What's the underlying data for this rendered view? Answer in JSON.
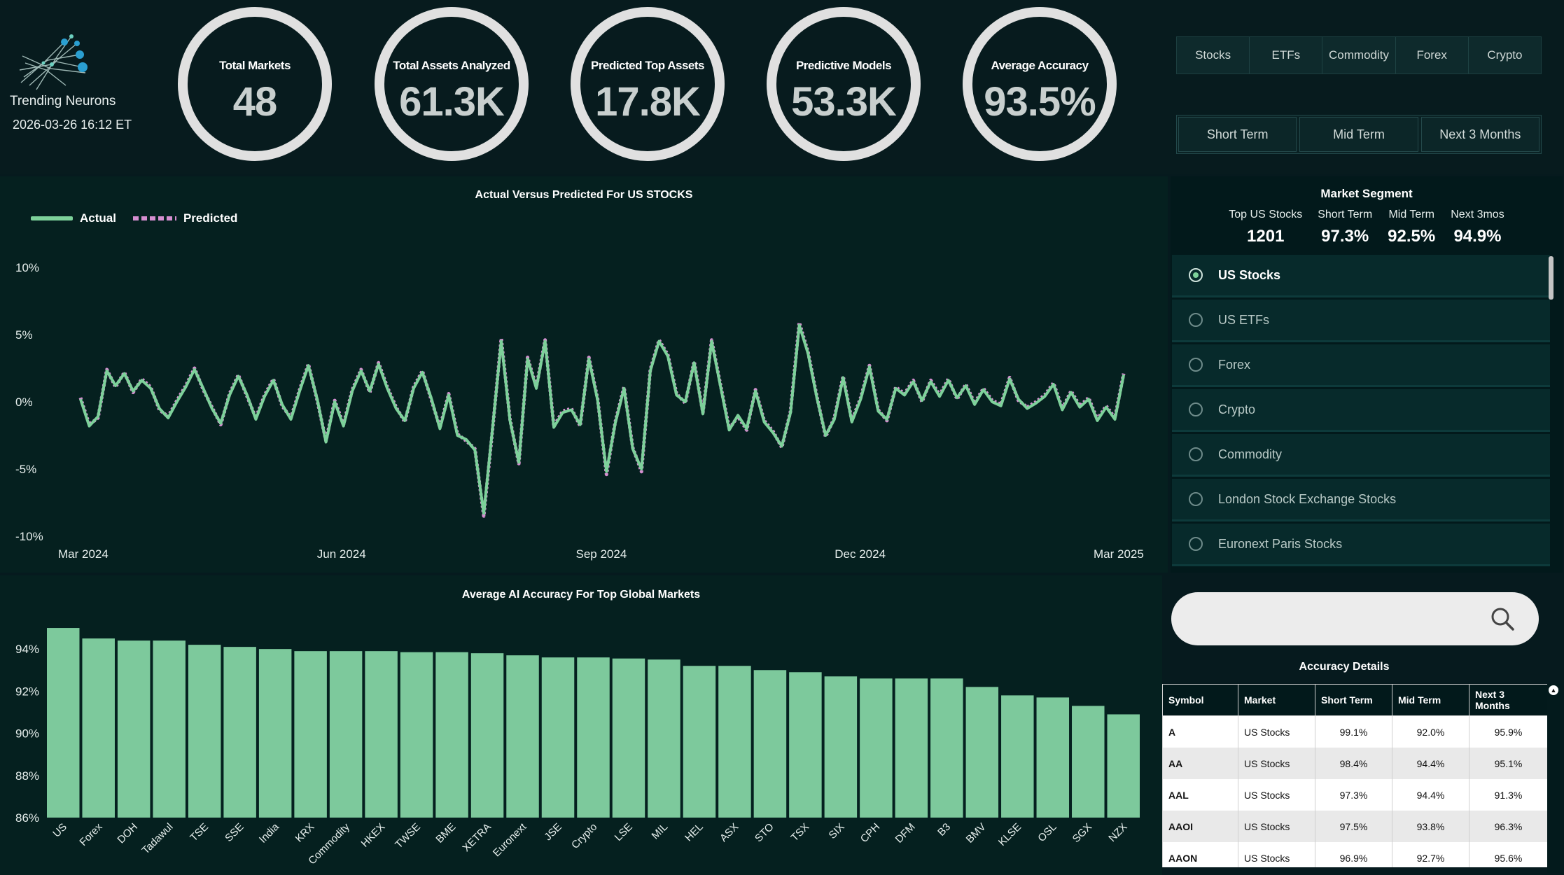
{
  "brand": {
    "name": "Trending Neurons",
    "datetime": "2026-03-26 16:12 ET"
  },
  "kpis": [
    {
      "label": "Total Markets",
      "value": "48"
    },
    {
      "label": "Total Assets Analyzed",
      "value": "61.3K"
    },
    {
      "label": "Predicted Top Assets",
      "value": "17.8K"
    },
    {
      "label": "Predictive Models",
      "value": "53.3K"
    },
    {
      "label": "Average Accuracy",
      "value": "93.5%"
    }
  ],
  "asset_tabs": [
    "Stocks",
    "ETFs",
    "Commodity",
    "Forex",
    "Crypto"
  ],
  "term_tabs": [
    "Short Term",
    "Mid Term",
    "Next 3 Months"
  ],
  "line_chart": {
    "title": "Actual Versus Predicted For US STOCKS",
    "legend": {
      "actual": "Actual",
      "predicted": "Predicted"
    },
    "y_ticks": [
      "10%",
      "5%",
      "0%",
      "-5%",
      "-10%"
    ],
    "x_ticks": [
      "Mar 2024",
      "Jun 2024",
      "Sep 2024",
      "Dec 2024",
      "Mar 2025"
    ]
  },
  "segment": {
    "title": "Market Segment",
    "stats": [
      {
        "label": "Top US Stocks",
        "value": "1201"
      },
      {
        "label": "Short Term",
        "value": "97.3%"
      },
      {
        "label": "Mid Term",
        "value": "92.5%"
      },
      {
        "label": "Next 3mos",
        "value": "94.9%"
      }
    ],
    "options": [
      {
        "label": "US Stocks",
        "selected": true
      },
      {
        "label": "US ETFs",
        "selected": false
      },
      {
        "label": "Forex",
        "selected": false
      },
      {
        "label": "Crypto",
        "selected": false
      },
      {
        "label": "Commodity",
        "selected": false
      },
      {
        "label": "London Stock Exchange Stocks",
        "selected": false
      },
      {
        "label": "Euronext Paris Stocks",
        "selected": false
      }
    ]
  },
  "search": {
    "placeholder": ""
  },
  "accuracy_details": {
    "title": "Accuracy Details",
    "columns": [
      "Symbol",
      "Market",
      "Short Term",
      "Mid Term",
      "Next 3 Months"
    ],
    "rows": [
      [
        "A",
        "US Stocks",
        "99.1%",
        "92.0%",
        "95.9%"
      ],
      [
        "AA",
        "US Stocks",
        "98.4%",
        "94.4%",
        "95.1%"
      ],
      [
        "AAL",
        "US Stocks",
        "97.3%",
        "94.4%",
        "91.3%"
      ],
      [
        "AAOI",
        "US Stocks",
        "97.5%",
        "93.8%",
        "96.3%"
      ],
      [
        "AAON",
        "US Stocks",
        "96.9%",
        "92.7%",
        "95.6%"
      ]
    ]
  },
  "chart_data": [
    {
      "type": "line",
      "title": "Actual Versus Predicted For US STOCKS",
      "x_range": [
        "2024-03-01",
        "2025-03-26"
      ],
      "ylim": [
        -10,
        10
      ],
      "y_unit": "%",
      "x_ticks": [
        "Mar 2024",
        "Jun 2024",
        "Sep 2024",
        "Dec 2024",
        "Mar 2025"
      ],
      "legend_position": "top-left",
      "series": [
        {
          "name": "Actual",
          "color": "#7dd19a",
          "style": "solid",
          "values": [
            0.2,
            -1.8,
            -1.1,
            2.3,
            1.2,
            2.1,
            0.8,
            1.6,
            1.0,
            -0.5,
            -1.2,
            0.0,
            1.1,
            2.4,
            1.0,
            -0.5,
            -1.6,
            0.5,
            1.9,
            0.5,
            -1.3,
            0.4,
            1.6,
            -0.2,
            -1.3,
            0.8,
            2.7,
            0.2,
            -3.0,
            0.0,
            -1.8,
            0.8,
            2.3,
            0.8,
            2.8,
            1.0,
            -0.5,
            -1.4,
            1.0,
            2.2,
            0.3,
            -2.0,
            0.5,
            -2.5,
            -2.8,
            -3.6,
            -8.3,
            -2.0,
            4.5,
            -1.4,
            -4.5,
            3.2,
            1.0,
            4.5,
            -1.9,
            -0.8,
            -0.6,
            -1.7,
            3.2,
            0.1,
            -5.2,
            -1.6,
            1.0,
            -3.5,
            -5.0,
            2.3,
            4.5,
            3.4,
            0.5,
            0.0,
            2.9,
            -0.9,
            4.5,
            1.2,
            -2.1,
            -1.0,
            -2.0,
            0.8,
            -1.5,
            -2.3,
            -3.3,
            -0.8,
            5.7,
            3.6,
            0.3,
            -2.5,
            -1.3,
            1.8,
            -1.5,
            0.2,
            2.6,
            -0.7,
            -1.3,
            1.0,
            0.5,
            1.5,
            0.1,
            1.5,
            0.4,
            1.6,
            0.3,
            1.2,
            -0.2,
            0.9,
            0.0,
            -0.3,
            1.7,
            0.2,
            -0.5,
            -0.1,
            0.4,
            1.3,
            -0.6,
            0.7,
            -0.4,
            0.2,
            -1.4,
            -0.4,
            -1.3,
            2.0
          ]
        },
        {
          "name": "Predicted",
          "color": "#d58ed0",
          "style": "dotted",
          "values": [
            0.3,
            -1.7,
            -1.2,
            2.4,
            1.1,
            2.2,
            0.7,
            1.7,
            1.1,
            -0.6,
            -1.1,
            0.1,
            1.2,
            2.5,
            0.9,
            -0.4,
            -1.7,
            0.6,
            2.0,
            0.4,
            -1.2,
            0.5,
            1.7,
            -0.3,
            -1.2,
            0.9,
            2.8,
            0.1,
            -2.9,
            0.1,
            -1.7,
            0.9,
            2.4,
            0.7,
            2.9,
            1.1,
            -0.4,
            -1.5,
            1.1,
            2.3,
            0.2,
            -1.9,
            0.6,
            -2.4,
            -2.9,
            -3.5,
            -8.5,
            -2.1,
            4.7,
            -1.3,
            -4.6,
            3.3,
            1.1,
            4.6,
            -1.8,
            -0.7,
            -0.5,
            -1.8,
            3.3,
            0.2,
            -5.4,
            -1.5,
            1.1,
            -3.4,
            -5.2,
            2.4,
            4.6,
            3.5,
            0.6,
            -0.1,
            3.0,
            -0.8,
            4.6,
            1.3,
            -2.0,
            -1.1,
            -2.1,
            0.9,
            -1.4,
            -2.2,
            -3.4,
            -0.7,
            5.9,
            3.7,
            0.4,
            -2.6,
            -1.2,
            1.9,
            -1.4,
            0.3,
            2.7,
            -0.6,
            -1.4,
            1.1,
            0.6,
            1.6,
            0.0,
            1.6,
            0.5,
            1.7,
            0.2,
            1.3,
            -0.1,
            1.0,
            0.1,
            -0.2,
            1.8,
            0.1,
            -0.4,
            0.0,
            0.5,
            1.4,
            -0.5,
            0.8,
            -0.3,
            0.3,
            -1.3,
            -0.3,
            -1.2,
            2.1
          ]
        }
      ]
    },
    {
      "type": "bar",
      "title": "Average AI Accuracy For Top Global Markets",
      "y_unit": "%",
      "ylim": [
        86,
        95.5
      ],
      "y_ticks": [
        "94%",
        "92%",
        "90%",
        "88%",
        "86%"
      ],
      "color": "#7dc99c",
      "categories": [
        "US",
        "Forex",
        "DOH",
        "Tadawul",
        "TSE",
        "SSE",
        "India",
        "KRX",
        "Commodity",
        "HKEX",
        "TWSE",
        "BME",
        "XETRA",
        "Euronext",
        "JSE",
        "Crypto",
        "LSE",
        "MIL",
        "HEL",
        "ASX",
        "STO",
        "TSX",
        "SIX",
        "CPH",
        "DFM",
        "B3",
        "BMV",
        "KLSE",
        "OSL",
        "SGX",
        "NZX"
      ],
      "values": [
        95.0,
        94.5,
        94.4,
        94.4,
        94.2,
        94.1,
        94.0,
        93.9,
        93.9,
        93.9,
        93.85,
        93.85,
        93.8,
        93.7,
        93.6,
        93.6,
        93.55,
        93.5,
        93.2,
        93.2,
        93.0,
        92.9,
        92.7,
        92.6,
        92.6,
        92.6,
        92.2,
        91.8,
        91.7,
        91.3,
        90.9
      ]
    }
  ]
}
